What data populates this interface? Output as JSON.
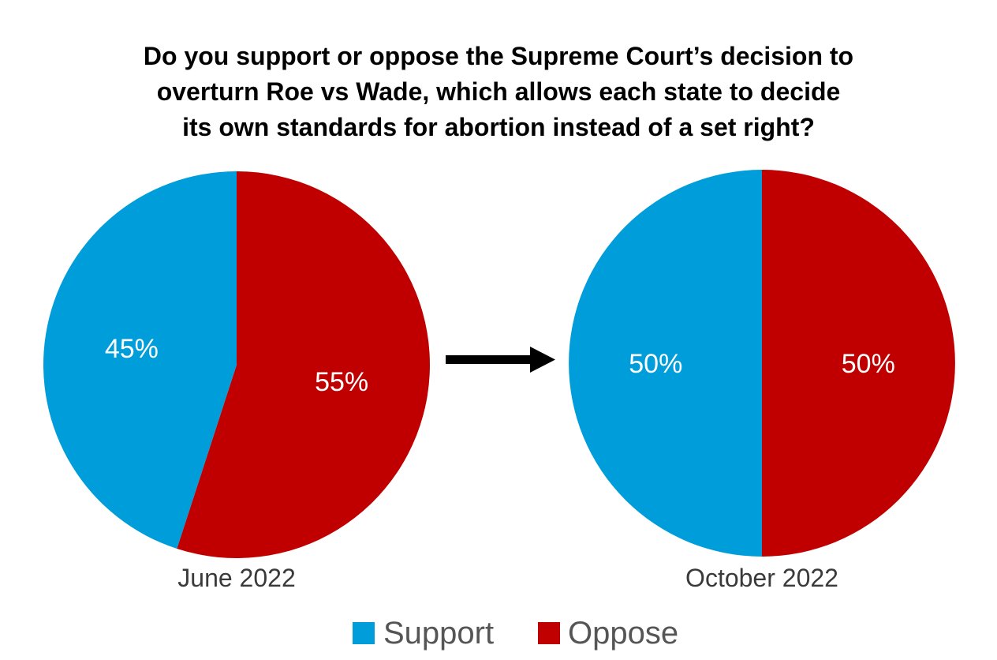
{
  "chart_data": {
    "type": "pie",
    "title_lines": [
      "Do you support or oppose the Supreme Court’s decision to",
      "overturn Roe vs Wade, which allows each state to decide",
      "its own standards for abortion instead of a set right?"
    ],
    "series": [
      {
        "name": "Support",
        "color": "#009ddb"
      },
      {
        "name": "Oppose",
        "color": "#c00000"
      }
    ],
    "pies": [
      {
        "label": "June 2022",
        "slices": [
          {
            "series": "Support",
            "value": 45,
            "label": "45%"
          },
          {
            "series": "Oppose",
            "value": 55,
            "label": "55%"
          }
        ]
      },
      {
        "label": "October 2022",
        "slices": [
          {
            "series": "Support",
            "value": 50,
            "label": "50%"
          },
          {
            "series": "Oppose",
            "value": 50,
            "label": "50%"
          }
        ]
      }
    ],
    "legend": {
      "position": "bottom",
      "items": [
        {
          "label": "Support",
          "color": "#009ddb"
        },
        {
          "label": "Oppose",
          "color": "#c00000"
        }
      ]
    },
    "arrow_icon": "right-arrow-icon"
  }
}
